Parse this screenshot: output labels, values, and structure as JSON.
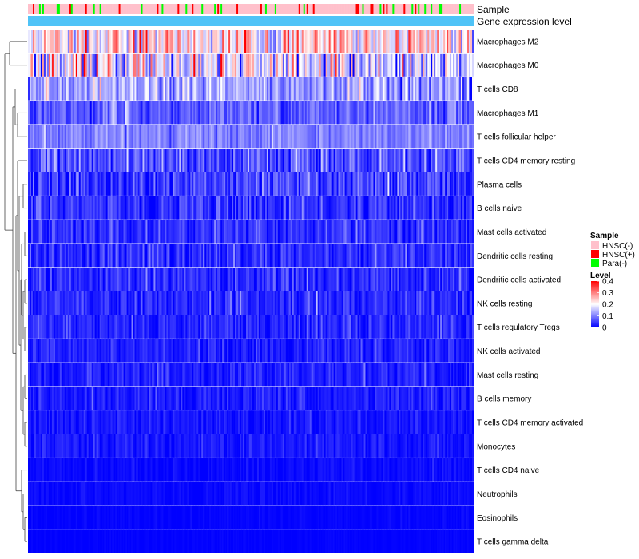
{
  "chart_data": {
    "type": "heatmap",
    "rows": [
      {
        "name": "Macrophages M2",
        "mean": 0.22,
        "spread": 0.09,
        "clip": false
      },
      {
        "name": "Macrophages M0",
        "mean": 0.17,
        "spread": 0.11,
        "clip": false
      },
      {
        "name": "T cells CD8",
        "mean": 0.12,
        "spread": 0.06,
        "clip": false
      },
      {
        "name": "Macrophages M1",
        "mean": 0.07,
        "spread": 0.04,
        "clip": false
      },
      {
        "name": "T cells follicular helper",
        "mean": 0.1,
        "spread": 0.03,
        "clip": false
      },
      {
        "name": "T cells CD4 memory resting",
        "mean": 0.055,
        "spread": 0.05,
        "clip": false
      },
      {
        "name": "Plasma cells",
        "mean": 0.04,
        "spread": 0.05,
        "clip": false
      },
      {
        "name": "B cells naive",
        "mean": 0.035,
        "spread": 0.04,
        "clip": false
      },
      {
        "name": "Mast cells activated",
        "mean": 0.035,
        "spread": 0.035,
        "clip": false
      },
      {
        "name": "Dendritic cells resting",
        "mean": 0.03,
        "spread": 0.035,
        "clip": false
      },
      {
        "name": "Dendritic cells activated",
        "mean": 0.03,
        "spread": 0.035,
        "clip": false
      },
      {
        "name": "NK cells resting",
        "mean": 0.03,
        "spread": 0.03,
        "clip": false
      },
      {
        "name": "T cells regulatory  Tregs",
        "mean": 0.028,
        "spread": 0.03,
        "clip": false
      },
      {
        "name": "NK cells activated",
        "mean": 0.022,
        "spread": 0.025,
        "clip": false
      },
      {
        "name": "Mast cells resting",
        "mean": 0.022,
        "spread": 0.025,
        "clip": false
      },
      {
        "name": "B cells memory",
        "mean": 0.02,
        "spread": 0.025,
        "clip": false
      },
      {
        "name": "T cells CD4 memory activated",
        "mean": 0.015,
        "spread": 0.02,
        "clip": false
      },
      {
        "name": "Monocytes",
        "mean": 0.018,
        "spread": 0.02,
        "clip": false
      },
      {
        "name": "T cells CD4 naive",
        "mean": 0.005,
        "spread": 0.012,
        "clip": false
      },
      {
        "name": "Neutrophils",
        "mean": 0.006,
        "spread": 0.01,
        "clip": false
      },
      {
        "name": "Eosinophils",
        "mean": 0.002,
        "spread": 0.006,
        "clip": false
      },
      {
        "name": "T cells gamma delta",
        "mean": 0.001,
        "spread": 0.004,
        "clip": true
      }
    ],
    "n_samples": 280,
    "value_range": [
      0,
      0.4
    ],
    "color_low": "#0000ff",
    "color_mid": "#ffffff",
    "color_high": "#ff0000",
    "color_mid_value": 0.2,
    "annotations": [
      {
        "name": "Sample",
        "label": "Sample"
      },
      {
        "name": "Gene expression level",
        "label": "Gene expression level",
        "color": "#4fc3f7"
      }
    ],
    "legend": {
      "sample": {
        "title": "Sample",
        "entries": [
          {
            "label": "HNSC(-)",
            "color": "#ffc0cb"
          },
          {
            "label": "HNSC(+)",
            "color": "#ff0000"
          },
          {
            "label": "Para(-)",
            "color": "#00ff00"
          }
        ]
      },
      "level": {
        "title": "Level",
        "ticks": [
          "0.4",
          "0.3",
          "0.2",
          "0.1",
          "0"
        ],
        "tick_values": [
          0.4,
          0.3,
          0.2,
          0.1,
          0
        ]
      }
    },
    "sample_composition": {
      "HNSC(-)": 0.82,
      "HNSC(+)": 0.09,
      "Para(-)": 0.09
    },
    "dendrogram": "rows"
  }
}
